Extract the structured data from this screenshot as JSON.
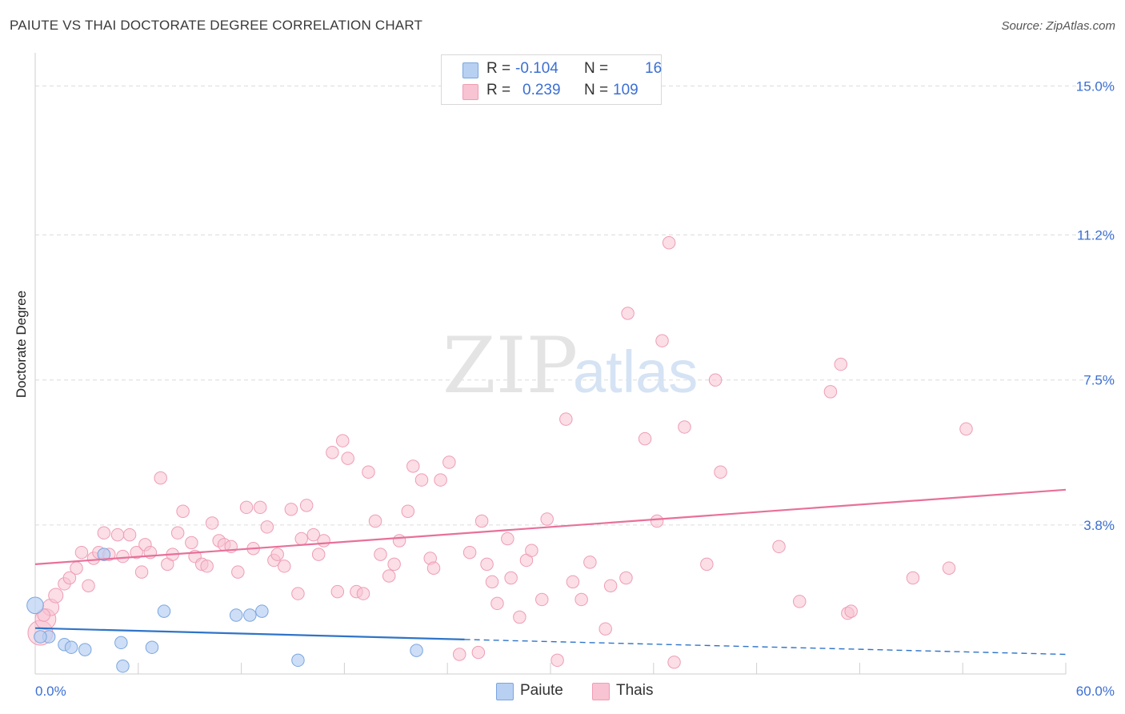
{
  "title": "PAIUTE VS THAI DOCTORATE DEGREE CORRELATION CHART",
  "source": "Source: ZipAtlas.com",
  "watermark": {
    "zip": "ZIP",
    "atlas": "atlas"
  },
  "legend": {
    "paiute": {
      "r_label": "R =",
      "r_value": "-0.104",
      "n_label": "N =",
      "n_value": "16"
    },
    "thai": {
      "r_label": "R =",
      "r_value": "0.239",
      "n_label": "N =",
      "n_value": "109"
    }
  },
  "bottom_legend": {
    "paiute": "Paiute",
    "thai": "Thais"
  },
  "colors": {
    "paiute_fill": "#b8d0f2",
    "paiute_stroke": "#7aa6e0",
    "paiute_line": "#2f74c8",
    "thai_fill": "#f8c3d2",
    "thai_stroke": "#ee9db5",
    "thai_line": "#e8709a",
    "tick_text": "#3b6fd4",
    "grid": "#dcdcdc"
  },
  "chart_data": {
    "type": "scatter",
    "title": "PAIUTE VS THAI DOCTORATE DEGREE CORRELATION CHART",
    "xlabel": "",
    "ylabel": "Doctorate Degree",
    "xlim": [
      0,
      60
    ],
    "ylim": [
      0,
      15.6
    ],
    "x_tick_labels": [
      "0.0%",
      "60.0%"
    ],
    "y_ticks": [
      3.8,
      7.5,
      11.2,
      15.0
    ],
    "y_tick_labels": [
      "3.8%",
      "7.5%",
      "11.2%",
      "15.0%"
    ],
    "grid": true,
    "legend_position": "top-center",
    "series": [
      {
        "name": "Paiute",
        "trend": {
          "x0": 0,
          "y0": 1.17,
          "x1": 25,
          "y1": 0.88,
          "x_dashed_end": 60,
          "y_dashed_end": 0.5
        },
        "points": [
          [
            0.0,
            1.75,
            16
          ],
          [
            0.8,
            0.95,
            12
          ],
          [
            1.7,
            0.75,
            12
          ],
          [
            2.1,
            0.68,
            12
          ],
          [
            2.9,
            0.62,
            12
          ],
          [
            4.0,
            3.05,
            12
          ],
          [
            5.0,
            0.8,
            12
          ],
          [
            5.1,
            0.2,
            12
          ],
          [
            6.8,
            0.68,
            12
          ],
          [
            7.5,
            1.6,
            12
          ],
          [
            11.7,
            1.5,
            12
          ],
          [
            12.5,
            1.5,
            12
          ],
          [
            13.2,
            1.6,
            12
          ],
          [
            15.3,
            0.35,
            12
          ],
          [
            22.2,
            0.6,
            12
          ],
          [
            0.3,
            0.95,
            12
          ]
        ]
      },
      {
        "name": "Thais",
        "trend": {
          "x0": 0,
          "y0": 2.8,
          "x1": 60,
          "y1": 4.7
        },
        "points": [
          [
            0.3,
            1.05,
            24
          ],
          [
            0.6,
            1.4,
            20
          ],
          [
            0.9,
            1.7,
            16
          ],
          [
            1.2,
            2.0,
            14
          ],
          [
            1.7,
            2.3,
            12
          ],
          [
            2.0,
            2.45,
            12
          ],
          [
            2.4,
            2.7,
            12
          ],
          [
            2.7,
            3.1,
            12
          ],
          [
            3.1,
            2.25,
            12
          ],
          [
            3.4,
            2.95,
            12
          ],
          [
            3.7,
            3.1,
            12
          ],
          [
            4.0,
            3.6,
            12
          ],
          [
            4.3,
            3.05,
            12
          ],
          [
            4.8,
            3.55,
            12
          ],
          [
            5.1,
            3.0,
            12
          ],
          [
            5.5,
            3.55,
            12
          ],
          [
            5.9,
            3.1,
            12
          ],
          [
            6.2,
            2.6,
            12
          ],
          [
            6.4,
            3.3,
            12
          ],
          [
            6.7,
            3.1,
            12
          ],
          [
            7.3,
            5.0,
            12
          ],
          [
            7.7,
            2.8,
            12
          ],
          [
            8.0,
            3.05,
            12
          ],
          [
            8.3,
            3.6,
            12
          ],
          [
            8.6,
            4.15,
            12
          ],
          [
            9.1,
            3.35,
            12
          ],
          [
            9.3,
            3.0,
            12
          ],
          [
            9.7,
            2.8,
            12
          ],
          [
            10.0,
            2.75,
            12
          ],
          [
            10.3,
            3.85,
            12
          ],
          [
            10.7,
            3.4,
            12
          ],
          [
            11.0,
            3.3,
            12
          ],
          [
            11.4,
            3.25,
            12
          ],
          [
            11.8,
            2.6,
            12
          ],
          [
            12.3,
            4.25,
            12
          ],
          [
            12.7,
            3.2,
            12
          ],
          [
            13.1,
            4.25,
            12
          ],
          [
            13.5,
            3.75,
            12
          ],
          [
            13.9,
            2.9,
            12
          ],
          [
            14.1,
            3.05,
            12
          ],
          [
            14.5,
            2.75,
            12
          ],
          [
            14.9,
            4.2,
            12
          ],
          [
            15.3,
            2.05,
            12
          ],
          [
            15.5,
            3.45,
            12
          ],
          [
            15.8,
            4.3,
            12
          ],
          [
            16.2,
            3.55,
            12
          ],
          [
            16.5,
            3.05,
            12
          ],
          [
            16.8,
            3.4,
            12
          ],
          [
            17.3,
            5.65,
            12
          ],
          [
            17.6,
            2.1,
            12
          ],
          [
            17.9,
            5.95,
            12
          ],
          [
            18.2,
            5.5,
            12
          ],
          [
            18.7,
            2.1,
            12
          ],
          [
            19.1,
            2.05,
            12
          ],
          [
            19.4,
            5.15,
            12
          ],
          [
            19.8,
            3.9,
            12
          ],
          [
            20.1,
            3.05,
            12
          ],
          [
            20.6,
            2.5,
            12
          ],
          [
            20.9,
            2.8,
            12
          ],
          [
            21.2,
            3.4,
            12
          ],
          [
            21.7,
            4.15,
            12
          ],
          [
            22.0,
            5.3,
            12
          ],
          [
            22.5,
            4.95,
            12
          ],
          [
            23.0,
            2.95,
            12
          ],
          [
            23.2,
            2.7,
            12
          ],
          [
            23.6,
            4.95,
            12
          ],
          [
            24.1,
            5.4,
            12
          ],
          [
            24.7,
            0.5,
            12
          ],
          [
            25.3,
            3.1,
            12
          ],
          [
            25.8,
            0.55,
            12
          ],
          [
            26.0,
            3.9,
            12
          ],
          [
            26.3,
            2.8,
            12
          ],
          [
            26.6,
            2.35,
            12
          ],
          [
            26.9,
            1.8,
            12
          ],
          [
            27.5,
            3.45,
            12
          ],
          [
            27.7,
            2.45,
            12
          ],
          [
            28.2,
            1.45,
            12
          ],
          [
            28.6,
            2.9,
            12
          ],
          [
            28.9,
            3.15,
            12
          ],
          [
            29.5,
            1.9,
            12
          ],
          [
            29.8,
            3.95,
            12
          ],
          [
            30.4,
            0.35,
            12
          ],
          [
            30.9,
            6.5,
            12
          ],
          [
            31.3,
            2.35,
            12
          ],
          [
            31.8,
            1.9,
            12
          ],
          [
            32.3,
            2.85,
            12
          ],
          [
            33.2,
            1.15,
            12
          ],
          [
            33.5,
            2.25,
            12
          ],
          [
            34.4,
            2.45,
            12
          ],
          [
            34.5,
            9.2,
            12
          ],
          [
            35.5,
            6.0,
            12
          ],
          [
            36.2,
            3.9,
            12
          ],
          [
            36.5,
            8.5,
            12
          ],
          [
            36.9,
            11.0,
            12
          ],
          [
            37.2,
            0.3,
            12
          ],
          [
            37.8,
            6.3,
            12
          ],
          [
            39.1,
            2.8,
            12
          ],
          [
            39.6,
            7.5,
            12
          ],
          [
            39.9,
            5.15,
            12
          ],
          [
            43.3,
            3.25,
            12
          ],
          [
            44.5,
            1.85,
            12
          ],
          [
            46.3,
            7.2,
            12
          ],
          [
            46.9,
            7.9,
            12
          ],
          [
            47.3,
            1.55,
            12
          ],
          [
            47.5,
            1.6,
            12
          ],
          [
            51.1,
            2.45,
            12
          ],
          [
            53.2,
            2.7,
            12
          ],
          [
            54.2,
            6.25,
            12
          ],
          [
            0.5,
            1.5,
            12
          ]
        ]
      }
    ]
  }
}
